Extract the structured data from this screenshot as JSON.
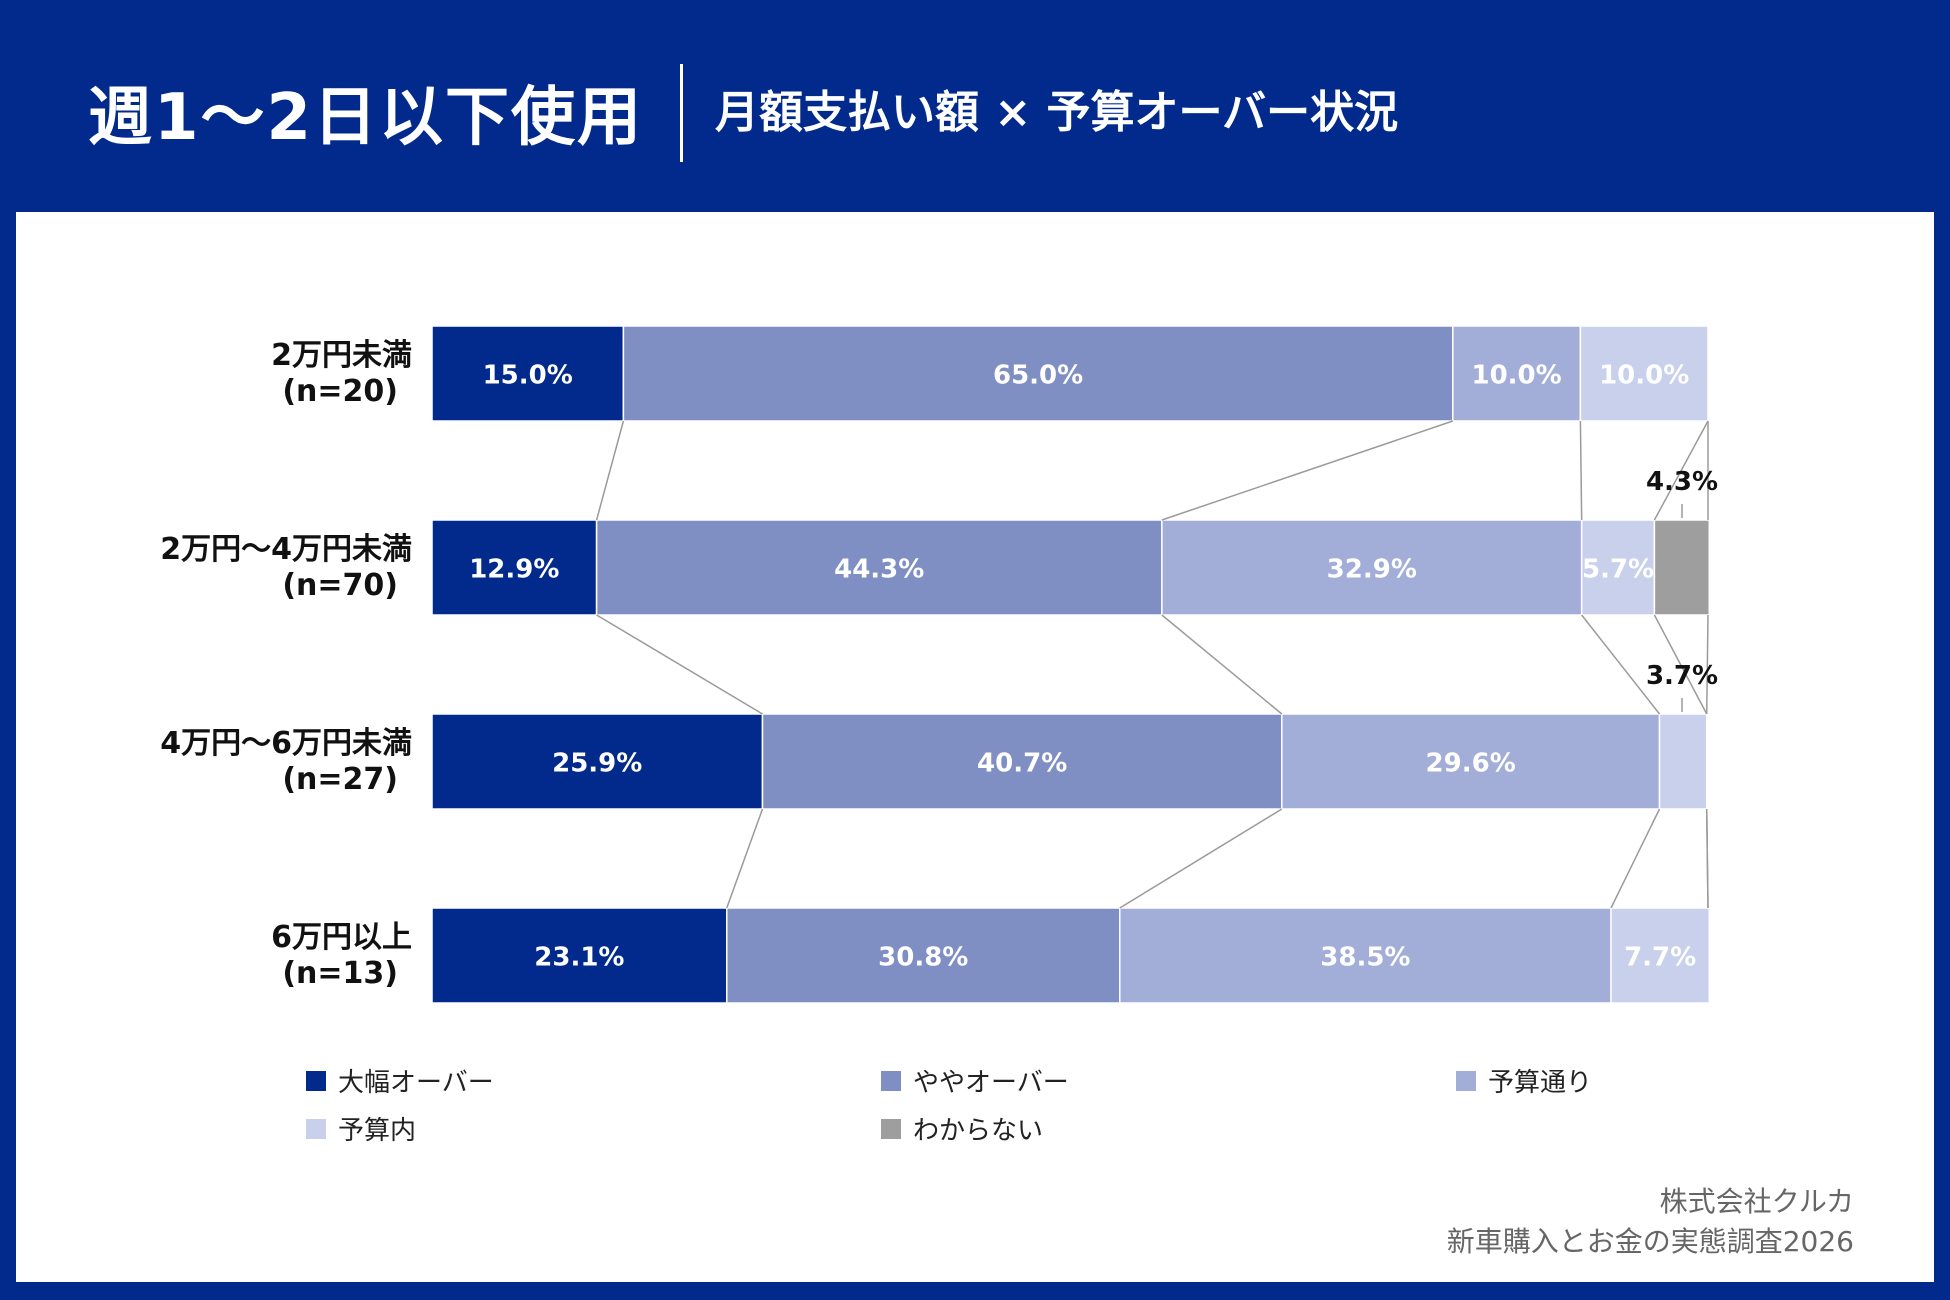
{
  "header": {
    "title": "週1〜2日以下使用",
    "subtitle": "月額支払い額 × 予算オーバー状況"
  },
  "colors": {
    "header_bg": "#012A8C",
    "series": [
      "#012A8C",
      "#7F8FC3",
      "#A3AED8",
      "#C8D0EB",
      "#9E9E9E"
    ]
  },
  "chart_data": {
    "type": "bar",
    "orientation": "horizontal",
    "stacked": "100%",
    "title": "月額支払い額 × 予算オーバー状況",
    "categories": [
      {
        "name": "2万円未満",
        "n": "(n=20)"
      },
      {
        "name": "2万円〜4万円未満",
        "n": "(n=70)"
      },
      {
        "name": "4万円〜6万円未満",
        "n": "(n=27)"
      },
      {
        "name": "6万円以上",
        "n": "(n=13)"
      }
    ],
    "series": [
      {
        "name": "大幅オーバー",
        "values": [
          15.0,
          12.9,
          25.9,
          23.1
        ]
      },
      {
        "name": "ややオーバー",
        "values": [
          65.0,
          44.3,
          40.7,
          30.8
        ]
      },
      {
        "name": "予算通り",
        "values": [
          10.0,
          32.9,
          29.6,
          38.5
        ]
      },
      {
        "name": "予算内",
        "values": [
          10.0,
          5.7,
          3.7,
          7.7
        ]
      },
      {
        "name": "わからない",
        "values": [
          0,
          4.3,
          0,
          0
        ]
      }
    ],
    "labels": [
      [
        "15.0%",
        "65.0%",
        "10.0%",
        "10.0%",
        ""
      ],
      [
        "12.9%",
        "44.3%",
        "32.9%",
        "5.7%",
        "4.3%"
      ],
      [
        "25.9%",
        "40.7%",
        "29.6%",
        "3.7%",
        ""
      ],
      [
        "23.1%",
        "30.8%",
        "38.5%",
        "7.7%",
        ""
      ]
    ],
    "xlim": [
      0,
      100
    ],
    "legend_position": "bottom"
  },
  "source": {
    "line1": "株式会社クルカ",
    "line2": "新車購入とお金の実態調査2026"
  }
}
